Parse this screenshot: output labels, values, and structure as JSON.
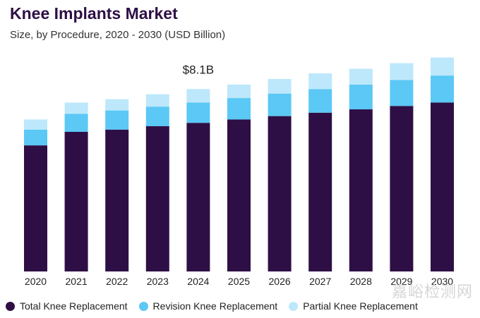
{
  "chart_data": {
    "type": "bar",
    "stacked": true,
    "title": "Knee Implants Market",
    "subtitle": "Size, by Procedure, 2020 - 2030 (USD Billion)",
    "categories": [
      "2020",
      "2021",
      "2022",
      "2023",
      "2024",
      "2025",
      "2026",
      "2027",
      "2028",
      "2029",
      "2030"
    ],
    "series": [
      {
        "name": "Total Knee Replacement",
        "color": "#2e0f45",
        "values": [
          5.6,
          6.2,
          6.3,
          6.45,
          6.6,
          6.75,
          6.9,
          7.05,
          7.2,
          7.35,
          7.5
        ]
      },
      {
        "name": "Revision Knee Replacement",
        "color": "#5bc8f5",
        "values": [
          0.7,
          0.8,
          0.85,
          0.87,
          0.9,
          0.95,
          1.0,
          1.05,
          1.1,
          1.15,
          1.2
        ]
      },
      {
        "name": "Partial Knee Replacement",
        "color": "#bde8fb",
        "values": [
          0.45,
          0.5,
          0.5,
          0.55,
          0.6,
          0.6,
          0.65,
          0.7,
          0.7,
          0.75,
          0.8
        ]
      }
    ],
    "annotations": [
      {
        "category": "2024",
        "text": "$8.1B"
      }
    ],
    "ylim": [
      0,
      9.8
    ],
    "grid": false,
    "legend": "bottom"
  },
  "watermark": "嘉峪检测网"
}
